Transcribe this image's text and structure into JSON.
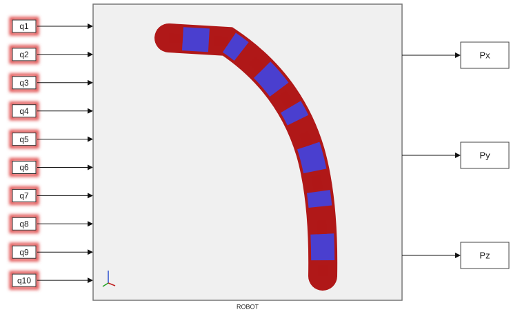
{
  "inputs": [
    "q1",
    "q2",
    "q3",
    "q4",
    "q5",
    "q6",
    "q7",
    "q8",
    "q9",
    "q10"
  ],
  "block": {
    "label": "ROBOT"
  },
  "outputs": [
    "Px",
    "Py",
    "Pz"
  ]
}
